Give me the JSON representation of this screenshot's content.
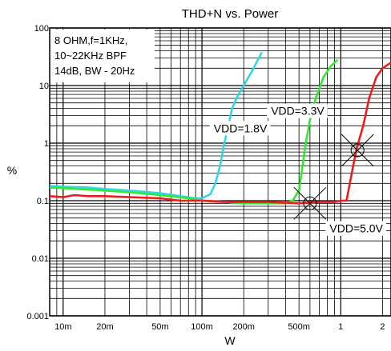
{
  "chart_data": {
    "type": "line",
    "title": "THD+N vs. Power",
    "xlabel": "W",
    "ylabel": "%",
    "x_scale": "log",
    "y_scale": "log",
    "xlim": [
      0.008,
      2.3
    ],
    "ylim": [
      0.001,
      100
    ],
    "x_ticks": [
      {
        "value": 0.01,
        "label": "10m"
      },
      {
        "value": 0.02,
        "label": "20m"
      },
      {
        "value": 0.05,
        "label": "50m"
      },
      {
        "value": 0.1,
        "label": "100m"
      },
      {
        "value": 0.2,
        "label": "200m"
      },
      {
        "value": 0.5,
        "label": "500m"
      },
      {
        "value": 1,
        "label": "1"
      },
      {
        "value": 2,
        "label": "2"
      }
    ],
    "y_ticks": [
      {
        "value": 0.001,
        "label": "0.001"
      },
      {
        "value": 0.01,
        "label": "0.01"
      },
      {
        "value": 0.1,
        "label": "0.1"
      },
      {
        "value": 1,
        "label": "1"
      },
      {
        "value": 10,
        "label": "10"
      },
      {
        "value": 100,
        "label": "100"
      }
    ],
    "grid": true,
    "conditions_text": [
      "8 OHM,f=1KHz,",
      "10~22KHz BPF",
      "14dB, BW - 20Hz"
    ],
    "series": [
      {
        "label": "VDD=1.8V",
        "color": "#33d6e8",
        "points": [
          [
            0.008,
            0.18
          ],
          [
            0.01,
            0.175
          ],
          [
            0.015,
            0.17
          ],
          [
            0.02,
            0.16
          ],
          [
            0.03,
            0.15
          ],
          [
            0.05,
            0.135
          ],
          [
            0.07,
            0.12
          ],
          [
            0.09,
            0.11
          ],
          [
            0.1,
            0.11
          ],
          [
            0.115,
            0.13
          ],
          [
            0.125,
            0.2
          ],
          [
            0.135,
            0.4
          ],
          [
            0.145,
            1.0
          ],
          [
            0.155,
            2.0
          ],
          [
            0.165,
            4.0
          ],
          [
            0.18,
            6.5
          ],
          [
            0.2,
            10
          ],
          [
            0.23,
            18
          ],
          [
            0.27,
            38
          ]
        ]
      },
      {
        "label": "VDD=3.3V",
        "color": "#33e833",
        "points": [
          [
            0.008,
            0.17
          ],
          [
            0.01,
            0.165
          ],
          [
            0.02,
            0.15
          ],
          [
            0.03,
            0.14
          ],
          [
            0.05,
            0.125
          ],
          [
            0.08,
            0.11
          ],
          [
            0.1,
            0.1
          ],
          [
            0.15,
            0.095
          ],
          [
            0.2,
            0.09
          ],
          [
            0.3,
            0.09
          ],
          [
            0.4,
            0.09
          ],
          [
            0.45,
            0.1
          ],
          [
            0.5,
            0.15
          ],
          [
            0.53,
            0.4
          ],
          [
            0.56,
            1.0
          ],
          [
            0.6,
            2.5
          ],
          [
            0.66,
            6
          ],
          [
            0.75,
            14
          ],
          [
            0.85,
            22
          ],
          [
            0.95,
            28
          ]
        ]
      },
      {
        "label": "VDD=5.0V",
        "color": "#ee1c1c",
        "points": [
          [
            0.008,
            0.12
          ],
          [
            0.01,
            0.115
          ],
          [
            0.012,
            0.125
          ],
          [
            0.015,
            0.12
          ],
          [
            0.02,
            0.12
          ],
          [
            0.03,
            0.115
          ],
          [
            0.05,
            0.11
          ],
          [
            0.07,
            0.1
          ],
          [
            0.1,
            0.1
          ],
          [
            0.15,
            0.095
          ],
          [
            0.2,
            0.095
          ],
          [
            0.3,
            0.095
          ],
          [
            0.5,
            0.09
          ],
          [
            0.7,
            0.095
          ],
          [
            0.9,
            0.095
          ],
          [
            1.0,
            0.1
          ],
          [
            1.1,
            0.1
          ],
          [
            1.2,
            0.3
          ],
          [
            1.3,
            0.8
          ],
          [
            1.45,
            2.0
          ],
          [
            1.6,
            6
          ],
          [
            1.8,
            14
          ],
          [
            2.0,
            20
          ],
          [
            2.3,
            25
          ]
        ]
      }
    ],
    "annotations": [
      {
        "text": "VDD=1.8V",
        "x": 0.12,
        "y": 1.6
      },
      {
        "text": "VDD=3.3V",
        "x": 0.31,
        "y": 3.2
      },
      {
        "text": "VDD=5.0V",
        "x": 0.82,
        "y": 0.029
      }
    ],
    "markers": [
      {
        "x": 0.6,
        "y": 0.09
      },
      {
        "x": 1.32,
        "y": 0.75
      }
    ]
  }
}
